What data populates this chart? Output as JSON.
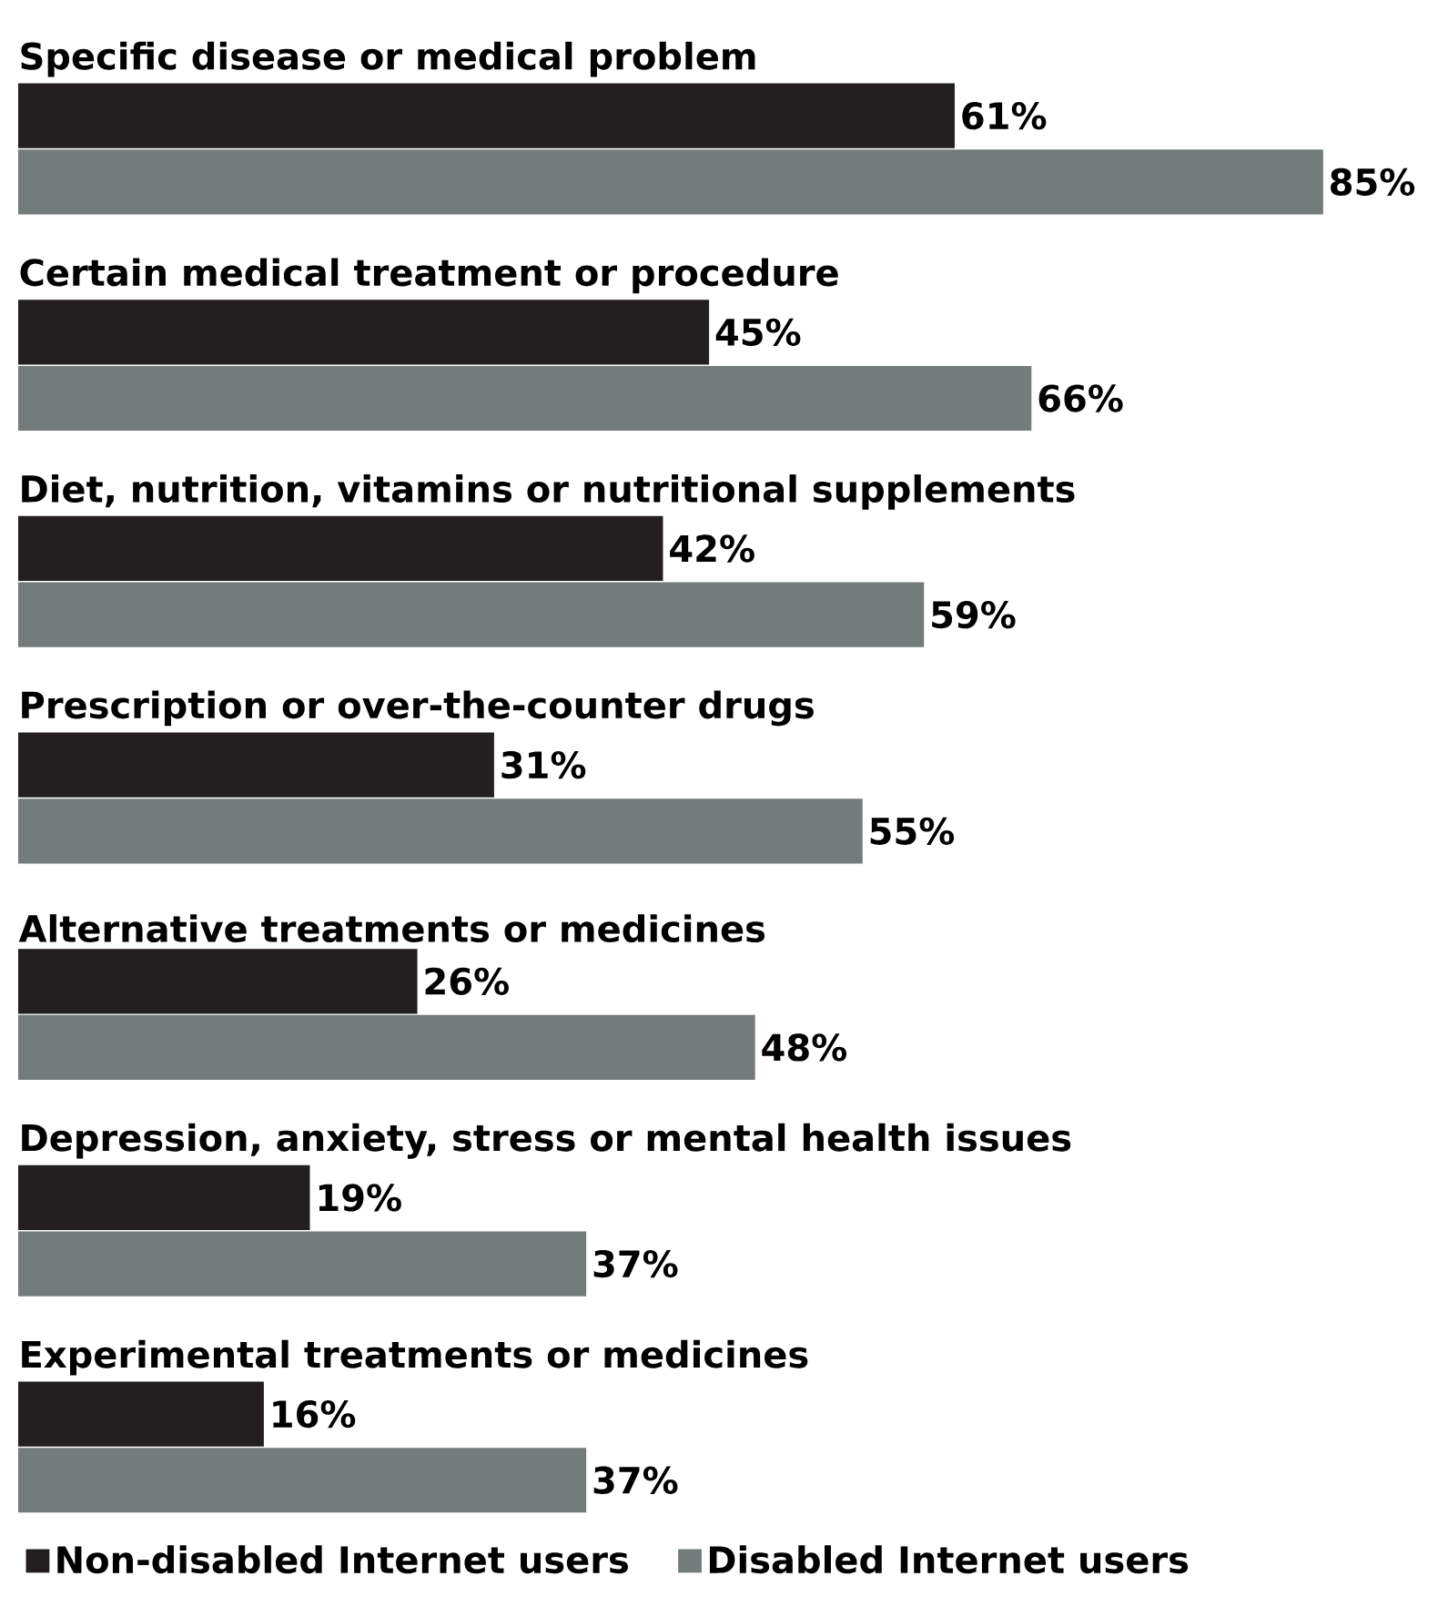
{
  "chart_data": {
    "type": "bar",
    "orientation": "horizontal",
    "categories": [
      "Specific disease or medical problem",
      "Certain medical treatment or procedure",
      "Diet, nutrition, vitamins or nutritional supplements",
      "Prescription or over-the-counter drugs",
      "Alternative treatments or medicines",
      "Depression, anxiety, stress or mental health issues",
      "Experimental treatments or medicines"
    ],
    "series": [
      {
        "name": "Non-disabled Internet users",
        "color": "#231f20",
        "values": [
          61,
          45,
          42,
          31,
          26,
          19,
          16
        ],
        "value_labels": [
          "61%",
          "45%",
          "42%",
          "31%",
          "26%",
          "19%",
          "16%"
        ]
      },
      {
        "name": "Disabled Internet users",
        "color": "#737b7b",
        "values": [
          85,
          66,
          59,
          55,
          48,
          37,
          37
        ],
        "value_labels": [
          "85%",
          "66%",
          "59%",
          "55%",
          "48%",
          "37%",
          "37%"
        ]
      }
    ],
    "legend": "bottom left"
  }
}
